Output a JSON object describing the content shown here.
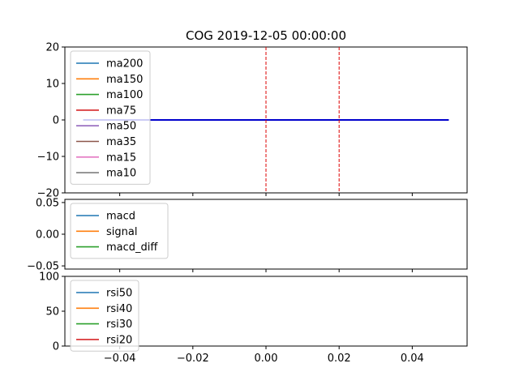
{
  "chart_data": {
    "title": "COG 2019-12-05 00:00:00",
    "panels": [
      {
        "id": "price",
        "type": "line",
        "ylim": [
          -20,
          20
        ],
        "yticks": [
          -20,
          -10,
          0,
          10,
          20
        ],
        "ytick_labels": [
          "−20",
          "−10",
          "0",
          "10",
          "20"
        ],
        "xlim": [
          -0.055,
          0.055
        ],
        "xtick_labels_shown": false,
        "legend_position": "upper-left",
        "series": [
          {
            "name": "ma200",
            "color": "#1f77b4"
          },
          {
            "name": "ma150",
            "color": "#ff7f0e"
          },
          {
            "name": "ma100",
            "color": "#2ca02c"
          },
          {
            "name": "ma75",
            "color": "#d62728"
          },
          {
            "name": "ma50",
            "color": "#9467bd"
          },
          {
            "name": "ma35",
            "color": "#8c564b"
          },
          {
            "name": "ma15",
            "color": "#e377c2"
          },
          {
            "name": "ma10",
            "color": "#7f7f7f"
          }
        ],
        "flat_line": {
          "x": [
            -0.05,
            0.05
          ],
          "y": 0,
          "color": "#0000cc"
        },
        "vlines": [
          {
            "x": 0.0,
            "color": "#dd0000",
            "style": "dashed"
          },
          {
            "x": 0.02,
            "color": "#dd0000",
            "style": "dashed"
          }
        ]
      },
      {
        "id": "macd",
        "type": "line",
        "ylim": [
          -0.055,
          0.055
        ],
        "yticks": [
          -0.05,
          0.0,
          0.05
        ],
        "ytick_labels": [
          "−0.05",
          "0.00",
          "0.05"
        ],
        "xlim": [
          -0.055,
          0.055
        ],
        "xtick_labels_shown": false,
        "legend_position": "upper-left",
        "series": [
          {
            "name": "macd",
            "color": "#1f77b4"
          },
          {
            "name": "signal",
            "color": "#ff7f0e"
          },
          {
            "name": "macd_diff",
            "color": "#2ca02c"
          }
        ]
      },
      {
        "id": "rsi",
        "type": "line",
        "ylim": [
          0,
          100
        ],
        "yticks": [
          0,
          50,
          100
        ],
        "ytick_labels": [
          "0",
          "50",
          "100"
        ],
        "xlim": [
          -0.055,
          0.055
        ],
        "xticks": [
          -0.04,
          -0.02,
          0.0,
          0.02,
          0.04
        ],
        "xtick_labels": [
          "−0.04",
          "−0.02",
          "0.00",
          "0.02",
          "0.04"
        ],
        "xtick_labels_shown": true,
        "legend_position": "upper-left",
        "series": [
          {
            "name": "rsi50",
            "color": "#1f77b4"
          },
          {
            "name": "rsi40",
            "color": "#ff7f0e"
          },
          {
            "name": "rsi30",
            "color": "#2ca02c"
          },
          {
            "name": "rsi20",
            "color": "#d62728"
          }
        ]
      }
    ],
    "shared_xticks": [
      -0.05,
      -0.04,
      -0.03,
      -0.02,
      -0.01,
      0.0,
      0.01,
      0.02,
      0.03,
      0.04,
      0.05
    ]
  }
}
